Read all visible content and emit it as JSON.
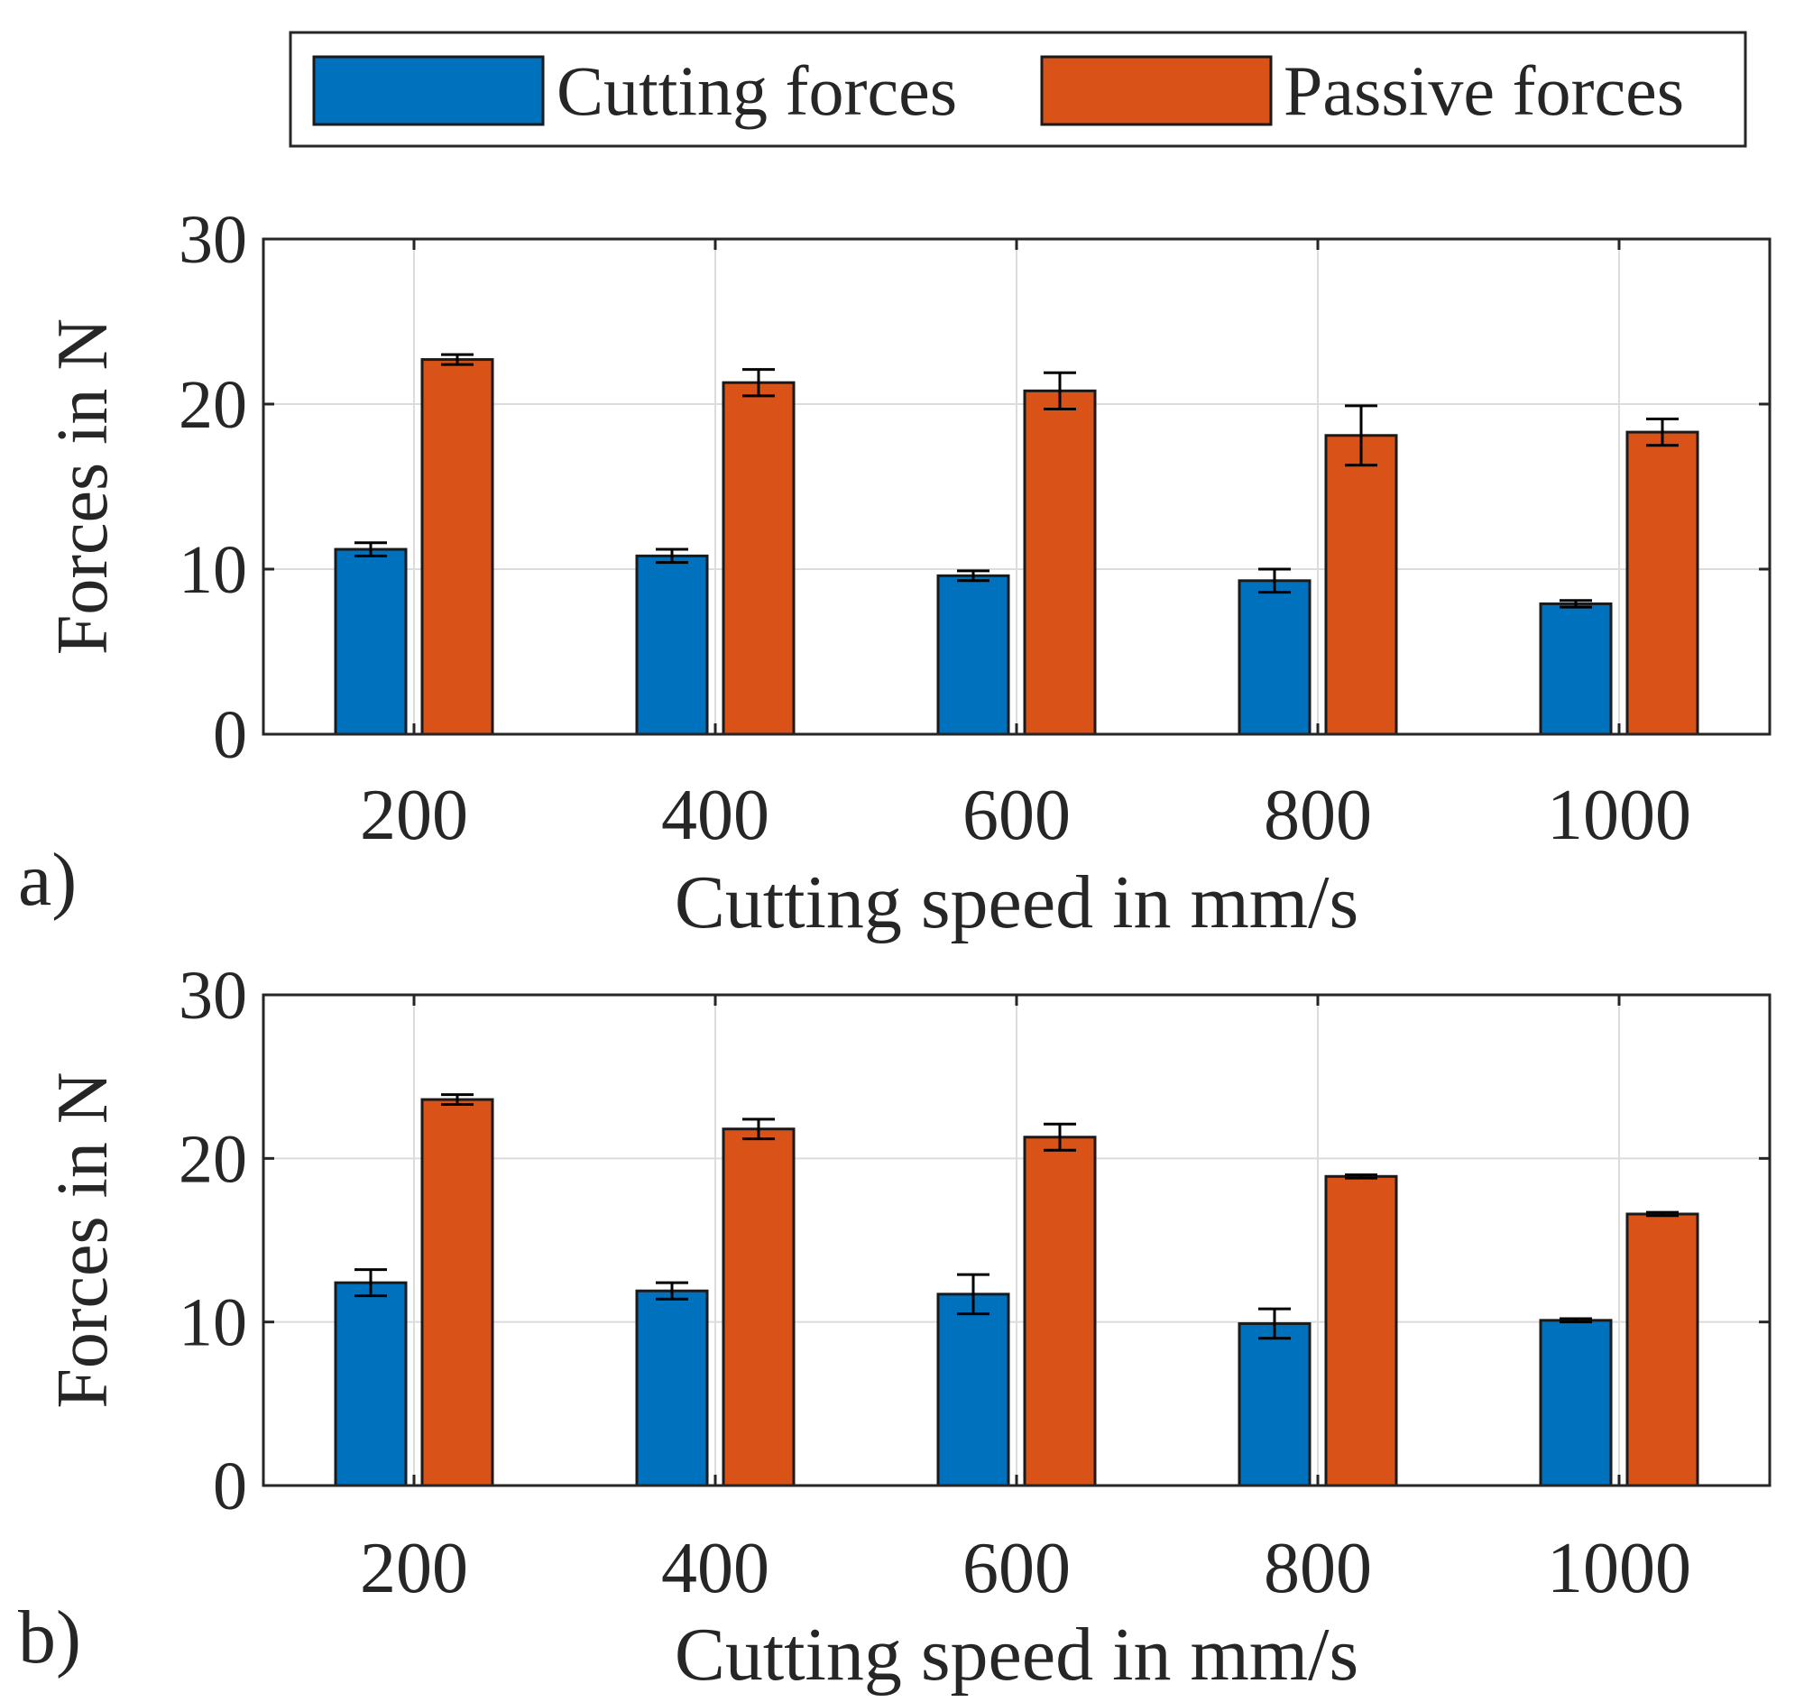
{
  "legend": {
    "items": [
      {
        "label": "Cutting forces",
        "color": "#0072BD"
      },
      {
        "label": "Passive forces",
        "color": "#D95319"
      }
    ],
    "placement": "top"
  },
  "colors": {
    "cutting": "#0072BD",
    "passive": "#D95319",
    "grid": "#dcdcdc",
    "axis": "#262626",
    "bar_edge": "#1a1a1a"
  },
  "chart_data": [
    {
      "type": "bar",
      "panel_label": "a)",
      "categories": [
        "200",
        "400",
        "600",
        "800",
        "1000"
      ],
      "xlabel": "Cutting speed in mm/s",
      "ylabel": "Forces in N",
      "ylim": [
        0,
        30
      ],
      "yticks": [
        "0",
        "10",
        "20",
        "30"
      ],
      "grid": true,
      "series": [
        {
          "name": "Cutting forces",
          "values": [
            11.2,
            10.8,
            9.6,
            9.3,
            7.9
          ],
          "errors": [
            0.4,
            0.4,
            0.3,
            0.7,
            0.2
          ]
        },
        {
          "name": "Passive forces",
          "values": [
            22.7,
            21.3,
            20.8,
            18.1,
            18.3
          ],
          "errors": [
            0.3,
            0.8,
            1.1,
            1.8,
            0.8
          ]
        }
      ]
    },
    {
      "type": "bar",
      "panel_label": "b)",
      "categories": [
        "200",
        "400",
        "600",
        "800",
        "1000"
      ],
      "xlabel": "Cutting speed in mm/s",
      "ylabel": "Forces in N",
      "ylim": [
        0,
        30
      ],
      "yticks": [
        "0",
        "10",
        "20",
        "30"
      ],
      "grid": true,
      "series": [
        {
          "name": "Cutting forces",
          "values": [
            12.4,
            11.9,
            11.7,
            9.9,
            10.1
          ],
          "errors": [
            0.8,
            0.5,
            1.2,
            0.9,
            0.1
          ]
        },
        {
          "name": "Passive forces",
          "values": [
            23.6,
            21.8,
            21.3,
            18.9,
            16.6
          ],
          "errors": [
            0.3,
            0.6,
            0.8,
            0.1,
            0.1
          ]
        }
      ]
    }
  ]
}
